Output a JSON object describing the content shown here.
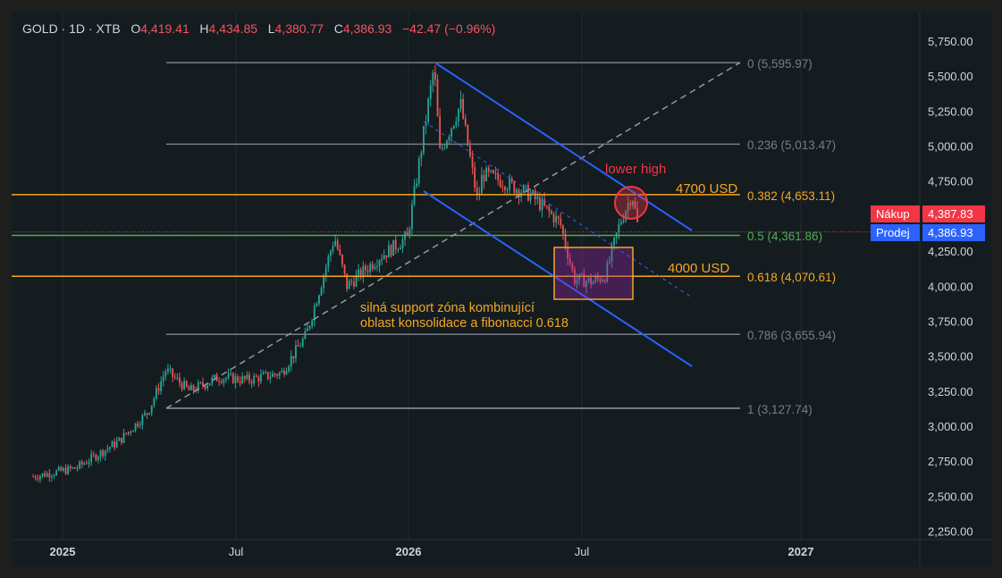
{
  "header": {
    "symbol": "GOLD · 1D · XTB",
    "o_label": "O",
    "o_value": "4,419.41",
    "h_label": "H",
    "h_value": "4,434.85",
    "l_label": "L",
    "l_value": "4,380.77",
    "c_label": "C",
    "c_value": "4,386.93",
    "change": "−42.47 (−0.96%)"
  },
  "price_tags": {
    "buy_label": "Nákup",
    "buy_value": "4,387.83",
    "sell_label": "Prodej",
    "sell_value": "4,386.93"
  },
  "colors": {
    "background": "#141c20",
    "up_candle": "#26a69a",
    "down_candle": "#ef5350",
    "channel": "#2962ff",
    "orange": "#f5a623",
    "fib_gray": "#787b86",
    "fib_green": "#4caf50",
    "annotation_red": "#f23645"
  },
  "chart_data": {
    "type": "candlestick",
    "symbol": "GOLD",
    "timeframe": "1D",
    "ylim": [
      2250,
      5850
    ],
    "y_ticks": [
      "5,750.00",
      "5,500.00",
      "5,250.00",
      "5,000.00",
      "4,750.00",
      "4,500.00",
      "4,250.00",
      "4,000.00",
      "3,750.00",
      "3,500.00",
      "3,250.00",
      "3,000.00",
      "2,750.00",
      "2,500.00",
      "2,250.00"
    ],
    "x_ticks": [
      "2025",
      "Jul",
      "2026",
      "Jul",
      "2027"
    ],
    "series": [
      {
        "name": "GOLD close (approx.)",
        "x": [
          "2024-12-01",
          "2025-01-15",
          "2025-03-01",
          "2025-04-01",
          "2025-04-20",
          "2025-05-15",
          "2025-06-15",
          "2025-07-15",
          "2025-08-20",
          "2025-09-15",
          "2025-10-15",
          "2025-10-28",
          "2025-11-30",
          "2025-12-31",
          "2026-01-28",
          "2026-02-03",
          "2026-02-25",
          "2026-03-15",
          "2026-03-20",
          "2026-04-10",
          "2026-05-10",
          "2026-06-10",
          "2026-06-25",
          "2026-07-15",
          "2026-07-28",
          "2026-08-12",
          "2026-08-25",
          "2026-09-01"
        ],
        "values": [
          2640,
          2700,
          2890,
          3100,
          3400,
          3250,
          3350,
          3330,
          3380,
          3650,
          4350,
          4000,
          4200,
          4350,
          5570,
          4950,
          5300,
          4600,
          4800,
          4750,
          4650,
          4450,
          4050,
          4030,
          4080,
          4450,
          4660,
          4387
        ]
      }
    ],
    "fibonacci": [
      {
        "level": "0",
        "price": 5595.97,
        "label": "0 (5,595.97)"
      },
      {
        "level": "0.236",
        "price": 5013.47,
        "label": "0.236 (5,013.47)"
      },
      {
        "level": "0.382",
        "price": 4653.11,
        "label": "0.382 (4,653.11)"
      },
      {
        "level": "0.5",
        "price": 4361.86,
        "label": "0.5 (4,361.86)"
      },
      {
        "level": "0.618",
        "price": 4070.61,
        "label": "0.618 (4,070.61)"
      },
      {
        "level": "0.786",
        "price": 3655.94,
        "label": "0.786 (3,655.94)"
      },
      {
        "level": "1",
        "price": 3127.74,
        "label": "1 (3,127.74)"
      }
    ],
    "annotations": {
      "lower_high": "lower high",
      "level_4700": "4700 USD",
      "level_4000": "4000 USD",
      "support_line1": "silná support zóna kombinující",
      "support_line2": "oblast konsolidace a fibonacci 0.618"
    },
    "grid": true
  }
}
